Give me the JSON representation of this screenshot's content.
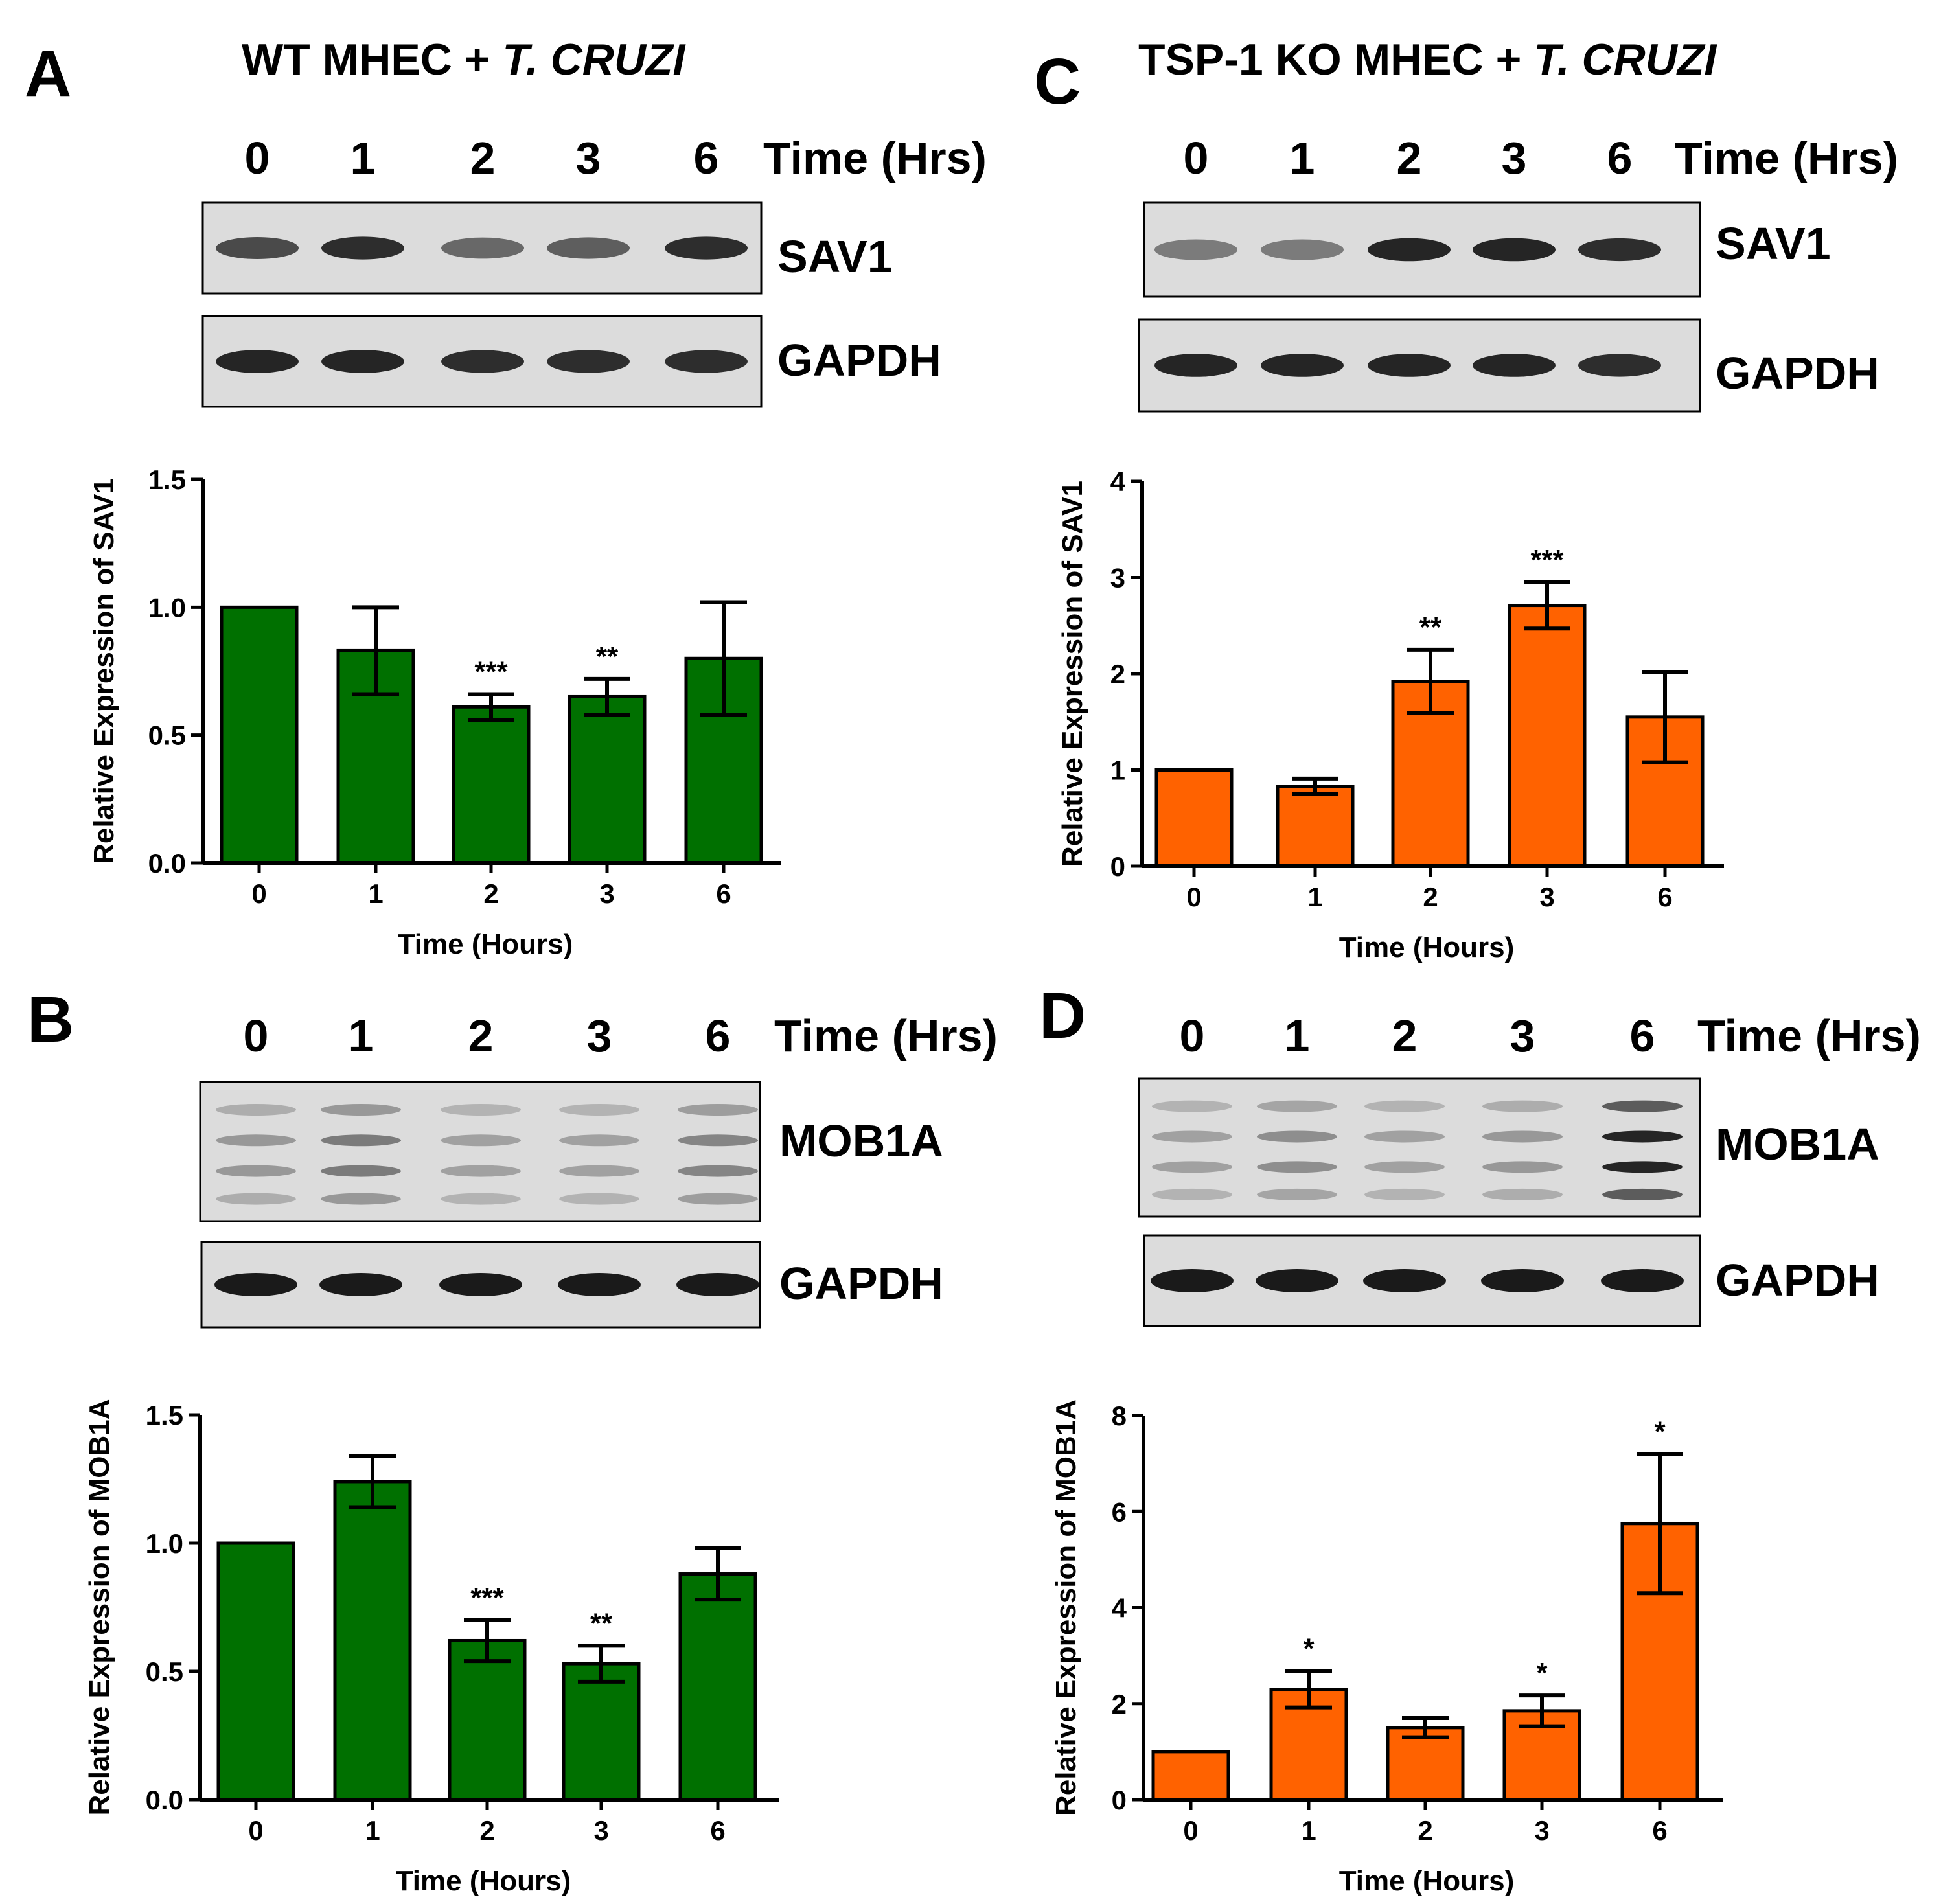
{
  "header_a": {
    "prefix": "WT MHEC + ",
    "organism": "T. CRUZI"
  },
  "header_c": {
    "prefix": "TSP-1 KO MHEC + ",
    "organism": "T. CRUZI"
  },
  "blot_time_label": "Time (Hrs)",
  "x_axis_title": "Time (Hours)",
  "colors": {
    "wt": "#007000",
    "ko": "#ff6200",
    "blot_bg": "#dcdcdc",
    "band": "#1a1a1a"
  },
  "panels": [
    {
      "letter": "A",
      "timepoints": [
        "0",
        "1",
        "2",
        "3",
        "6"
      ],
      "blots": [
        {
          "label": "SAV1",
          "intensity": [
            0.75,
            0.9,
            0.6,
            0.65,
            0.9
          ]
        },
        {
          "label": "GAPDH",
          "intensity": [
            0.95,
            0.95,
            0.9,
            0.9,
            0.9
          ]
        }
      ]
    },
    {
      "letter": "C",
      "timepoints": [
        "0",
        "1",
        "2",
        "3",
        "6"
      ],
      "blots": [
        {
          "label": "SAV1",
          "intensity": [
            0.5,
            0.5,
            0.95,
            0.95,
            0.9
          ]
        },
        {
          "label": "GAPDH",
          "intensity": [
            0.95,
            0.95,
            0.95,
            0.95,
            0.9
          ]
        }
      ]
    },
    {
      "letter": "B",
      "timepoints": [
        "0",
        "1",
        "2",
        "3",
        "6"
      ],
      "blots": [
        {
          "label": "MOB1A",
          "intensity": [
            0.35,
            0.5,
            0.3,
            0.3,
            0.45
          ]
        },
        {
          "label": "GAPDH",
          "intensity": [
            1,
            1,
            1,
            1,
            1
          ]
        }
      ]
    },
    {
      "letter": "D",
      "timepoints": [
        "0",
        "1",
        "2",
        "3",
        "6"
      ],
      "blots": [
        {
          "label": "MOB1A",
          "intensity": [
            0.3,
            0.4,
            0.3,
            0.35,
            0.95
          ]
        },
        {
          "label": "GAPDH",
          "intensity": [
            1,
            1,
            1,
            1,
            1
          ]
        }
      ]
    }
  ],
  "chart_data": [
    {
      "panel": "A",
      "type": "bar",
      "title": "",
      "xlabel": "Time (Hours)",
      "ylabel": "Relative Expression of SAV1",
      "categories": [
        "0",
        "1",
        "2",
        "3",
        "6"
      ],
      "values": [
        1.0,
        0.83,
        0.61,
        0.65,
        0.8
      ],
      "errors": [
        0,
        0.17,
        0.05,
        0.07,
        0.22
      ],
      "significance": [
        "",
        "",
        "***",
        "**",
        ""
      ],
      "ylim": [
        0,
        1.5
      ],
      "yticks": [
        "0.0",
        "0.5",
        "1.0",
        "1.5"
      ],
      "color": "#007000"
    },
    {
      "panel": "C",
      "type": "bar",
      "title": "",
      "xlabel": "Time (Hours)",
      "ylabel": "Relative Expression of SAV1",
      "categories": [
        "0",
        "1",
        "2",
        "3",
        "6"
      ],
      "values": [
        1.0,
        0.83,
        1.92,
        2.71,
        1.55
      ],
      "errors": [
        0,
        0.08,
        0.33,
        0.24,
        0.47
      ],
      "significance": [
        "",
        "",
        "**",
        "***",
        ""
      ],
      "ylim": [
        0,
        4
      ],
      "yticks": [
        "0",
        "1",
        "2",
        "3",
        "4"
      ],
      "color": "#ff6200"
    },
    {
      "panel": "B",
      "type": "bar",
      "title": "",
      "xlabel": "Time (Hours)",
      "ylabel": "Relative Expression of MOB1A",
      "categories": [
        "0",
        "1",
        "2",
        "3",
        "6"
      ],
      "values": [
        1.0,
        1.24,
        0.62,
        0.53,
        0.88
      ],
      "errors": [
        0,
        0.1,
        0.08,
        0.07,
        0.1
      ],
      "significance": [
        "",
        "",
        "***",
        "**",
        ""
      ],
      "ylim": [
        0,
        1.5
      ],
      "yticks": [
        "0.0",
        "0.5",
        "1.0",
        "1.5"
      ],
      "color": "#007000"
    },
    {
      "panel": "D",
      "type": "bar",
      "title": "",
      "xlabel": "Time (Hours)",
      "ylabel": "Relative Expression of MOB1A",
      "categories": [
        "0",
        "1",
        "2",
        "3",
        "6"
      ],
      "values": [
        1.0,
        2.3,
        1.5,
        1.85,
        5.75
      ],
      "errors": [
        0,
        0.38,
        0.2,
        0.32,
        1.45
      ],
      "significance": [
        "",
        "*",
        "",
        "*",
        "*"
      ],
      "ylim": [
        0,
        8
      ],
      "yticks": [
        "0",
        "2",
        "4",
        "6",
        "8"
      ],
      "color": "#ff6200"
    }
  ]
}
